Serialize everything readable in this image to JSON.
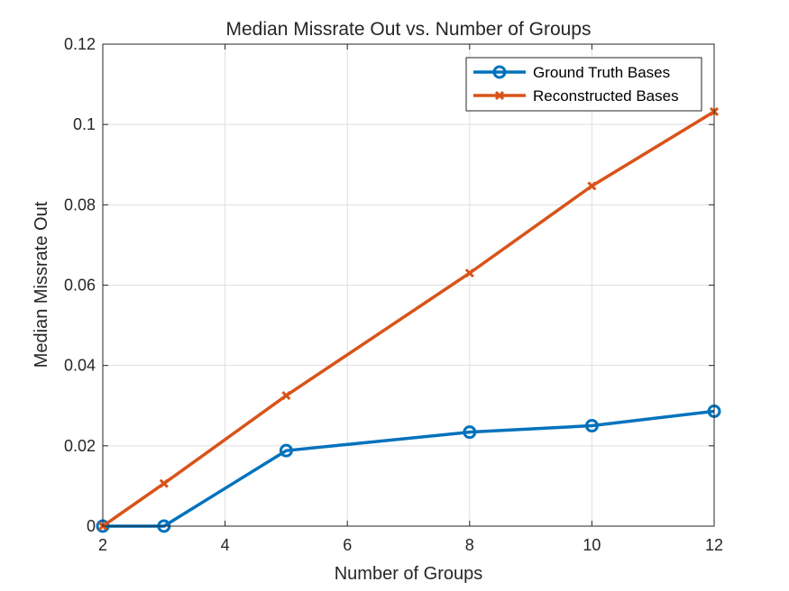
{
  "chart_data": {
    "type": "line",
    "title": "Median Missrate Out vs. Number of Groups",
    "xlabel": "Number of Groups",
    "ylabel": "Median Missrate Out",
    "xlim": [
      2,
      12
    ],
    "ylim": [
      0,
      0.12
    ],
    "xticks": [
      "2",
      "4",
      "6",
      "8",
      "10",
      "12"
    ],
    "yticks": [
      "0",
      "0.02",
      "0.04",
      "0.06",
      "0.08",
      "0.1",
      "0.12"
    ],
    "grid": true,
    "legend_position": "top-right",
    "x": [
      2,
      3,
      5,
      8,
      10,
      12
    ],
    "series": [
      {
        "name": "Ground Truth Bases",
        "values": [
          0,
          0,
          0.0188,
          0.0234,
          0.025,
          0.0286
        ],
        "color": "#0072BD",
        "marker": "circle"
      },
      {
        "name": "Reconstructed Bases",
        "values": [
          0,
          0.0106,
          0.0325,
          0.063,
          0.0847,
          0.1032
        ],
        "color": "#D95319",
        "marker": "x"
      }
    ]
  }
}
